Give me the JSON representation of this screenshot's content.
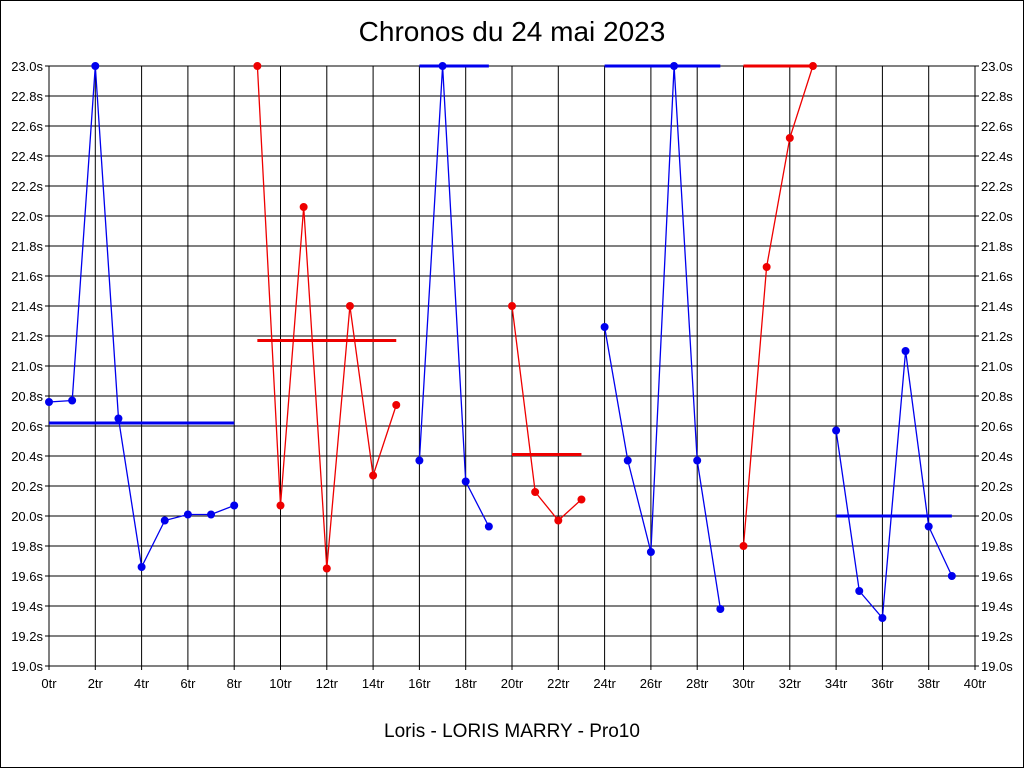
{
  "title": "Chronos du 24 mai 2023",
  "footer": "Loris - LORIS MARRY - Pro10",
  "chart_data": {
    "type": "line",
    "title": "Chronos du 24 mai 2023",
    "xlabel": "Loris - LORIS MARRY - Pro10",
    "ylabel": "",
    "xlim": [
      0,
      40
    ],
    "ylim": [
      19.0,
      23.0
    ],
    "grid": true,
    "x_ticks": [
      "0tr",
      "2tr",
      "4tr",
      "6tr",
      "8tr",
      "10tr",
      "12tr",
      "14tr",
      "16tr",
      "18tr",
      "20tr",
      "22tr",
      "24tr",
      "26tr",
      "28tr",
      "30tr",
      "32tr",
      "34tr",
      "36tr",
      "38tr",
      "40tr"
    ],
    "y_ticks": [
      "19.0s",
      "19.2s",
      "19.4s",
      "19.6s",
      "19.8s",
      "20.0s",
      "20.2s",
      "20.4s",
      "20.6s",
      "20.8s",
      "21.0s",
      "21.2s",
      "21.4s",
      "21.6s",
      "21.8s",
      "22.0s",
      "22.2s",
      "22.4s",
      "22.6s",
      "22.8s",
      "23.0s"
    ],
    "series": [
      {
        "color": "#0000ee",
        "mean": 20.62,
        "mean_x": [
          0,
          8
        ],
        "points": [
          [
            0,
            20.76
          ],
          [
            1,
            20.77
          ],
          [
            2,
            23.0
          ],
          [
            3,
            20.65
          ],
          [
            4,
            19.66
          ],
          [
            5,
            19.97
          ],
          [
            6,
            20.01
          ],
          [
            7,
            20.01
          ],
          [
            8,
            20.07
          ]
        ]
      },
      {
        "color": "#ee0000",
        "mean": 21.17,
        "mean_x": [
          9,
          15
        ],
        "points": [
          [
            9,
            23.0
          ],
          [
            10,
            20.07
          ],
          [
            11,
            22.06
          ],
          [
            12,
            19.65
          ],
          [
            13,
            21.4
          ],
          [
            14,
            20.27
          ],
          [
            15,
            20.74
          ]
        ]
      },
      {
        "color": "#0000ee",
        "mean": 23.0,
        "mean_x": [
          16,
          19
        ],
        "points": [
          [
            16,
            20.37
          ],
          [
            17,
            23.0
          ],
          [
            18,
            20.23
          ],
          [
            19,
            19.93
          ]
        ]
      },
      {
        "color": "#ee0000",
        "mean": 20.41,
        "mean_x": [
          20,
          23
        ],
        "points": [
          [
            20,
            21.4
          ],
          [
            21,
            20.16
          ],
          [
            22,
            19.97
          ],
          [
            23,
            20.11
          ]
        ]
      },
      {
        "color": "#0000ee",
        "mean": 23.0,
        "mean_x": [
          24,
          29
        ],
        "points": [
          [
            24,
            21.26
          ],
          [
            25,
            20.37
          ],
          [
            26,
            19.76
          ],
          [
            27,
            23.0
          ],
          [
            28,
            20.37
          ],
          [
            29,
            19.38
          ]
        ]
      },
      {
        "color": "#ee0000",
        "mean": 23.0,
        "mean_x": [
          30,
          33
        ],
        "points": [
          [
            30,
            19.8
          ],
          [
            31,
            21.66
          ],
          [
            32,
            22.52
          ],
          [
            33,
            23.0
          ]
        ]
      },
      {
        "color": "#0000ee",
        "mean": 20.0,
        "mean_x": [
          34,
          39
        ],
        "points": [
          [
            34,
            20.57
          ],
          [
            35,
            19.5
          ],
          [
            36,
            19.32
          ],
          [
            37,
            21.1
          ],
          [
            38,
            19.93
          ],
          [
            39,
            19.6
          ]
        ]
      }
    ]
  }
}
